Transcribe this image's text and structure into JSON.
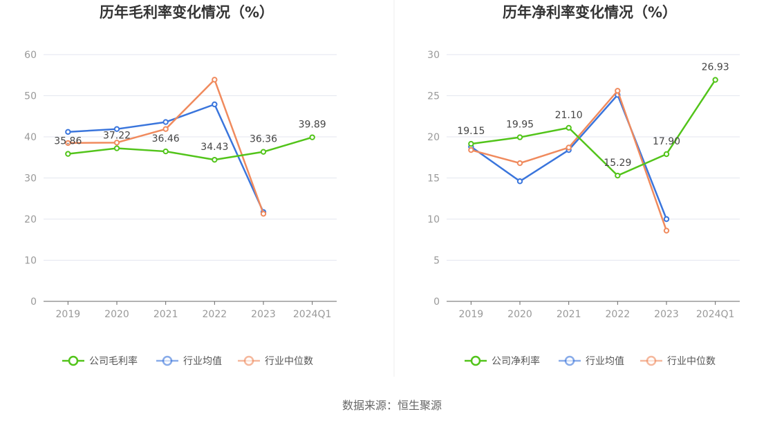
{
  "source": "数据来源：恒生聚源",
  "chart_data": [
    {
      "type": "line",
      "title": "历年毛利率变化情况（%）",
      "categories": [
        "2019",
        "2020",
        "2021",
        "2022",
        "2023",
        "2024Q1"
      ],
      "ylim": [
        0,
        60
      ],
      "yticks": [
        "0",
        "10",
        "20",
        "30",
        "40",
        "50",
        "60"
      ],
      "grid": true,
      "legend_position": "bottom",
      "series": [
        {
          "name": "公司毛利率",
          "color": "#52c41a",
          "values": [
            35.86,
            37.22,
            36.46,
            34.43,
            36.36,
            39.89
          ],
          "labels": [
            "35.86",
            "37.22",
            "36.46",
            "34.43",
            "36.36",
            "39.89"
          ]
        },
        {
          "name": "行业均值",
          "color": "#3a75dc",
          "values": [
            41.2,
            41.9,
            43.6,
            47.9,
            21.7,
            null
          ]
        },
        {
          "name": "行业中位数",
          "color": "#f08a5d",
          "values": [
            38.5,
            38.6,
            41.9,
            53.9,
            21.3,
            null
          ]
        }
      ]
    },
    {
      "type": "line",
      "title": "历年净利率变化情况（%）",
      "categories": [
        "2019",
        "2020",
        "2021",
        "2022",
        "2023",
        "2024Q1"
      ],
      "ylim": [
        0,
        30
      ],
      "yticks": [
        "0",
        "5",
        "10",
        "15",
        "20",
        "25",
        "30"
      ],
      "grid": true,
      "legend_position": "bottom",
      "series": [
        {
          "name": "公司净利率",
          "color": "#52c41a",
          "values": [
            19.15,
            19.95,
            21.1,
            15.29,
            17.9,
            26.93
          ],
          "labels": [
            "19.15",
            "19.95",
            "21.10",
            "15.29",
            "17.90",
            "26.93"
          ]
        },
        {
          "name": "行业均值",
          "color": "#3a75dc",
          "values": [
            18.8,
            14.6,
            18.4,
            25.1,
            10.0,
            null
          ]
        },
        {
          "name": "行业中位数",
          "color": "#f08a5d",
          "values": [
            18.4,
            16.8,
            18.7,
            25.6,
            8.6,
            null
          ]
        }
      ]
    }
  ]
}
